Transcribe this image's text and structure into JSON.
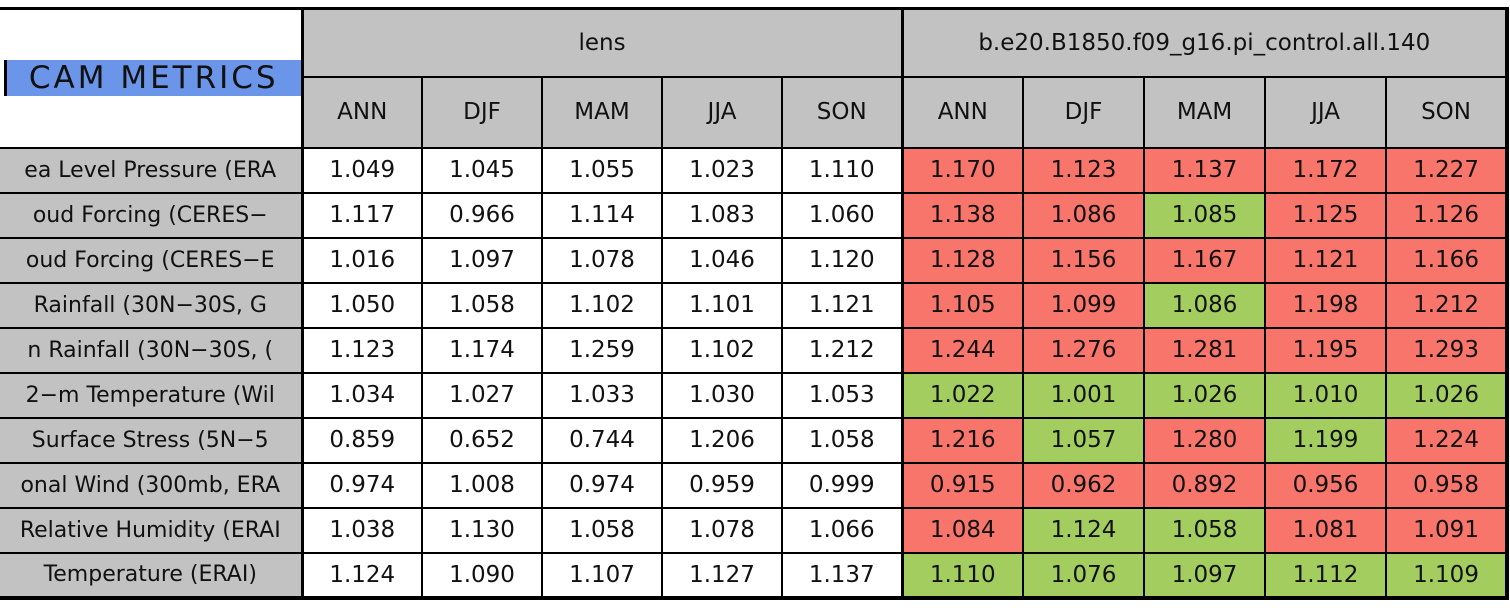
{
  "table": {
    "corner_title": "CAM METRICS",
    "groups": [
      {
        "label": "lens"
      },
      {
        "label": "b.e20.B1850.f09_g16.pi_control.all.140"
      }
    ],
    "seasons": [
      "ANN",
      "DJF",
      "MAM",
      "JJA",
      "SON"
    ],
    "palette": {
      "blue": "#6A95E8",
      "gray": "#C2C2C2",
      "red": "#F8756B",
      "green": "#A3CE5F",
      "white": "#FFFFFF"
    },
    "rows": [
      {
        "label": "ea Level Pressure (ERA",
        "lens": [
          "1.049",
          "1.045",
          "1.055",
          "1.023",
          "1.110"
        ],
        "control": [
          "1.170",
          "1.123",
          "1.137",
          "1.172",
          "1.227"
        ],
        "control_colors": [
          "red",
          "red",
          "red",
          "red",
          "red"
        ]
      },
      {
        "label": "oud Forcing (CERES−",
        "lens": [
          "1.117",
          "0.966",
          "1.114",
          "1.083",
          "1.060"
        ],
        "control": [
          "1.138",
          "1.086",
          "1.085",
          "1.125",
          "1.126"
        ],
        "control_colors": [
          "red",
          "red",
          "green",
          "red",
          "red"
        ]
      },
      {
        "label": "oud Forcing (CERES−E",
        "lens": [
          "1.016",
          "1.097",
          "1.078",
          "1.046",
          "1.120"
        ],
        "control": [
          "1.128",
          "1.156",
          "1.167",
          "1.121",
          "1.166"
        ],
        "control_colors": [
          "red",
          "red",
          "red",
          "red",
          "red"
        ]
      },
      {
        "label": "Rainfall (30N−30S, G",
        "lens": [
          "1.050",
          "1.058",
          "1.102",
          "1.101",
          "1.121"
        ],
        "control": [
          "1.105",
          "1.099",
          "1.086",
          "1.198",
          "1.212"
        ],
        "control_colors": [
          "red",
          "red",
          "green",
          "red",
          "red"
        ]
      },
      {
        "label": "n Rainfall (30N−30S, (",
        "lens": [
          "1.123",
          "1.174",
          "1.259",
          "1.102",
          "1.212"
        ],
        "control": [
          "1.244",
          "1.276",
          "1.281",
          "1.195",
          "1.293"
        ],
        "control_colors": [
          "red",
          "red",
          "red",
          "red",
          "red"
        ]
      },
      {
        "label": "2−m Temperature (Wil",
        "lens": [
          "1.034",
          "1.027",
          "1.033",
          "1.030",
          "1.053"
        ],
        "control": [
          "1.022",
          "1.001",
          "1.026",
          "1.010",
          "1.026"
        ],
        "control_colors": [
          "green",
          "green",
          "green",
          "green",
          "green"
        ]
      },
      {
        "label": "Surface Stress (5N−5",
        "lens": [
          "0.859",
          "0.652",
          "0.744",
          "1.206",
          "1.058"
        ],
        "control": [
          "1.216",
          "1.057",
          "1.280",
          "1.199",
          "1.224"
        ],
        "control_colors": [
          "red",
          "green",
          "red",
          "green",
          "red"
        ]
      },
      {
        "label": "onal Wind (300mb, ERA",
        "lens": [
          "0.974",
          "1.008",
          "0.974",
          "0.959",
          "0.999"
        ],
        "control": [
          "0.915",
          "0.962",
          "0.892",
          "0.956",
          "0.958"
        ],
        "control_colors": [
          "red",
          "red",
          "red",
          "red",
          "red"
        ]
      },
      {
        "label": "Relative Humidity (ERAI",
        "lens": [
          "1.038",
          "1.130",
          "1.058",
          "1.078",
          "1.066"
        ],
        "control": [
          "1.084",
          "1.124",
          "1.058",
          "1.081",
          "1.091"
        ],
        "control_colors": [
          "red",
          "green",
          "green",
          "red",
          "red"
        ]
      },
      {
        "label": "Temperature (ERAI)",
        "lens": [
          "1.124",
          "1.090",
          "1.107",
          "1.127",
          "1.137"
        ],
        "control": [
          "1.110",
          "1.076",
          "1.097",
          "1.112",
          "1.109"
        ],
        "control_colors": [
          "green",
          "green",
          "green",
          "green",
          "green"
        ]
      }
    ]
  },
  "chart_data": {
    "type": "table",
    "title": "CAM METRICS",
    "column_groups": [
      "lens",
      "b.e20.B1850.f09_g16.pi_control.all.140"
    ],
    "columns_per_group": [
      "ANN",
      "DJF",
      "MAM",
      "JJA",
      "SON"
    ],
    "row_labels": [
      "ea Level Pressure (ERA",
      "oud Forcing (CERES−",
      "oud Forcing (CERES−E",
      "Rainfall (30N−30S, G",
      "n Rainfall (30N−30S, (",
      "2−m Temperature (Wil",
      "Surface Stress (5N−5",
      "onal Wind (300mb, ERA",
      "Relative Humidity (ERAI",
      "Temperature (ERAI)"
    ],
    "series": [
      {
        "name": "lens",
        "values": [
          [
            1.049,
            1.045,
            1.055,
            1.023,
            1.11
          ],
          [
            1.117,
            0.966,
            1.114,
            1.083,
            1.06
          ],
          [
            1.016,
            1.097,
            1.078,
            1.046,
            1.12
          ],
          [
            1.05,
            1.058,
            1.102,
            1.101,
            1.121
          ],
          [
            1.123,
            1.174,
            1.259,
            1.102,
            1.212
          ],
          [
            1.034,
            1.027,
            1.033,
            1.03,
            1.053
          ],
          [
            0.859,
            0.652,
            0.744,
            1.206,
            1.058
          ],
          [
            0.974,
            1.008,
            0.974,
            0.959,
            0.999
          ],
          [
            1.038,
            1.13,
            1.058,
            1.078,
            1.066
          ],
          [
            1.124,
            1.09,
            1.107,
            1.127,
            1.137
          ]
        ]
      },
      {
        "name": "b.e20.B1850.f09_g16.pi_control.all.140",
        "values": [
          [
            1.17,
            1.123,
            1.137,
            1.172,
            1.227
          ],
          [
            1.138,
            1.086,
            1.085,
            1.125,
            1.126
          ],
          [
            1.128,
            1.156,
            1.167,
            1.121,
            1.166
          ],
          [
            1.105,
            1.099,
            1.086,
            1.198,
            1.212
          ],
          [
            1.244,
            1.276,
            1.281,
            1.195,
            1.293
          ],
          [
            1.022,
            1.001,
            1.026,
            1.01,
            1.026
          ],
          [
            1.216,
            1.057,
            1.28,
            1.199,
            1.224
          ],
          [
            0.915,
            0.962,
            0.892,
            0.956,
            0.958
          ],
          [
            1.084,
            1.124,
            1.058,
            1.081,
            1.091
          ],
          [
            1.11,
            1.076,
            1.097,
            1.112,
            1.109
          ]
        ],
        "cell_colors": [
          [
            "red",
            "red",
            "red",
            "red",
            "red"
          ],
          [
            "red",
            "red",
            "green",
            "red",
            "red"
          ],
          [
            "red",
            "red",
            "red",
            "red",
            "red"
          ],
          [
            "red",
            "red",
            "green",
            "red",
            "red"
          ],
          [
            "red",
            "red",
            "red",
            "red",
            "red"
          ],
          [
            "green",
            "green",
            "green",
            "green",
            "green"
          ],
          [
            "red",
            "green",
            "red",
            "green",
            "red"
          ],
          [
            "red",
            "red",
            "red",
            "red",
            "red"
          ],
          [
            "red",
            "green",
            "green",
            "red",
            "red"
          ],
          [
            "green",
            "green",
            "green",
            "green",
            "green"
          ]
        ]
      }
    ],
    "legend_hint": "red = worse than lens, green = better/close; lens cells uncolored (white)"
  }
}
